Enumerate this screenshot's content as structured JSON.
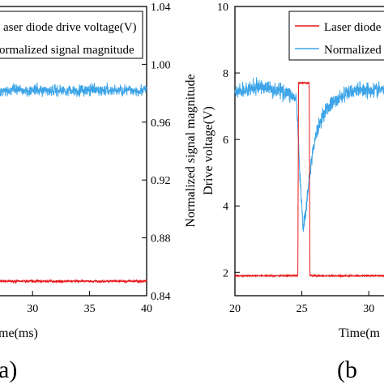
{
  "chart_data": [
    {
      "panel": "(a)",
      "type": "line",
      "xlabel": "Time(ms)",
      "ylabel_right": "Normalized signal magnitude",
      "x_ticks": [
        30,
        35,
        40
      ],
      "xlim": [
        27,
        40
      ],
      "ylim_right": [
        0.84,
        1.04
      ],
      "y_ticks_right": [
        "0.84",
        "0.88",
        "0.92",
        "0.96",
        "1.00",
        "1.04"
      ],
      "legend": [
        "Laser diode drive voltage(V)",
        "Normalized signal magnitude"
      ],
      "series": [
        {
          "name": "Laser diode drive voltage(V)",
          "color": "#e8191b",
          "x": [
            27,
            40
          ],
          "y": [
            0.85,
            0.85
          ],
          "noise": 0.0012
        },
        {
          "name": "Normalized signal magnitude",
          "color": "#3da5e8",
          "x": [
            27,
            40
          ],
          "y": [
            0.982,
            0.982
          ],
          "noise": 0.006
        }
      ]
    },
    {
      "panel": "(b)",
      "type": "line",
      "xlabel": "Time(ms)",
      "ylabel": "Drive voltage(V)",
      "x_ticks": [
        20,
        25,
        30
      ],
      "xlim": [
        20,
        31.5
      ],
      "ylim": [
        1.3,
        10
      ],
      "y_ticks": [
        "2",
        "4",
        "6",
        "8",
        "10"
      ],
      "legend": [
        "Laser diode drive voltage(V)",
        "Normalized signal magnitude"
      ],
      "series": [
        {
          "name": "Laser diode drive voltage(V)",
          "color": "#e8191b",
          "x": [
            20,
            24.7,
            24.75,
            25.55,
            25.6,
            31.5
          ],
          "y": [
            1.9,
            1.9,
            7.7,
            7.7,
            1.9,
            1.9
          ],
          "noise": 0.04
        },
        {
          "name": "Normalized signal magnitude",
          "color": "#3da5e8",
          "x": [
            20,
            21,
            22,
            23,
            24,
            24.6,
            24.9,
            25.1,
            25.3,
            25.6,
            26,
            26.5,
            27,
            28,
            29,
            30,
            31.5
          ],
          "y": [
            7.4,
            7.5,
            7.6,
            7.5,
            7.4,
            7.2,
            4.5,
            3.3,
            3.8,
            5.0,
            6.1,
            6.7,
            7.0,
            7.3,
            7.5,
            7.5,
            7.5
          ],
          "noise": 0.35
        }
      ]
    }
  ],
  "labels": {
    "a_xlabel_visible": "me(ms)",
    "b_xlabel_visible": "Time(m",
    "a_panel_visible": "a)",
    "b_panel_visible": "(b",
    "a_legend1_visible": "aser diode drive voltage(V)",
    "a_legend2_visible": "ormalized signal magnitude",
    "b_legend1_visible": "Laser diode",
    "b_legend2_visible": "Normalized"
  }
}
